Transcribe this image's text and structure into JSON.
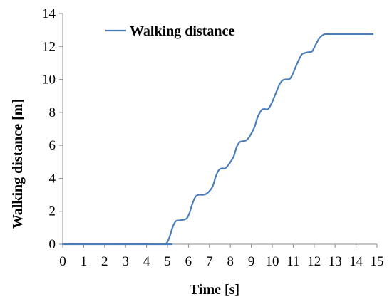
{
  "chart_data": {
    "type": "line",
    "xlabel": "Time  [s]",
    "ylabel": "Walking distance  [m]",
    "xlim": [
      0,
      15
    ],
    "ylim": [
      0,
      14
    ],
    "x_ticks": [
      "0",
      "1",
      "2",
      "3",
      "4",
      "5",
      "6",
      "7",
      "8",
      "9",
      "10",
      "11",
      "12",
      "13",
      "14",
      "15"
    ],
    "y_ticks": [
      "0",
      "2",
      "4",
      "6",
      "8",
      "10",
      "12",
      "14"
    ],
    "grid": false,
    "legend_position": "top",
    "series": [
      {
        "name": "Walking distance",
        "color": "#4a7ebb",
        "x": [
          0,
          4.8,
          4.95,
          5.1,
          5.25,
          5.4,
          5.6,
          5.9,
          6.05,
          6.2,
          6.35,
          6.5,
          6.7,
          6.9,
          7.15,
          7.3,
          7.45,
          7.6,
          7.75,
          7.9,
          8.15,
          8.3,
          8.45,
          8.6,
          8.75,
          8.9,
          9.15,
          9.3,
          9.5,
          9.65,
          9.8,
          9.95,
          10.15,
          10.35,
          10.5,
          10.65,
          10.85,
          11.0,
          11.2,
          11.4,
          11.55,
          11.7,
          11.9,
          12.05,
          12.25,
          12.45,
          12.6,
          12.75,
          12.95,
          13.1,
          13.3,
          13.5,
          13.65,
          13.8,
          14.0,
          14.2,
          14.4,
          14.8
        ],
        "y": [
          0,
          0,
          0.05,
          0.45,
          1.05,
          1.4,
          1.45,
          1.55,
          1.9,
          2.5,
          2.9,
          3.0,
          3.0,
          3.1,
          3.5,
          4.1,
          4.5,
          4.6,
          4.6,
          4.8,
          5.3,
          5.9,
          6.2,
          6.25,
          6.3,
          6.5,
          7.1,
          7.7,
          8.15,
          8.2,
          8.2,
          8.5,
          9.1,
          9.7,
          9.95,
          10.0,
          10.05,
          10.4,
          11.0,
          11.5,
          11.6,
          11.65,
          11.7,
          12.05,
          12.5,
          12.72,
          12.75,
          12.75,
          12.75,
          12.75,
          12.75,
          12.75,
          12.75,
          12.75,
          12.75,
          12.75,
          12.75,
          12.75
        ]
      }
    ]
  }
}
